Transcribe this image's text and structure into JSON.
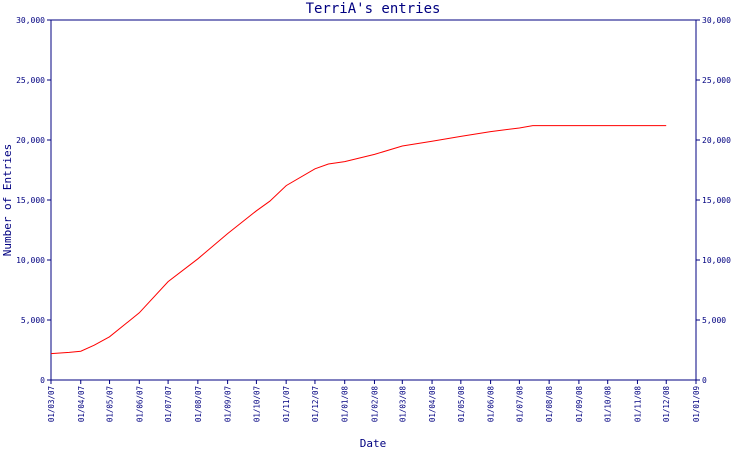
{
  "chart_data": {
    "type": "line",
    "title": "TerriA's entries",
    "xlabel": "Date",
    "ylabel": "Number of Entries",
    "ylim": [
      0,
      30000
    ],
    "y_ticks": [
      {
        "value": 0,
        "label": "0"
      },
      {
        "value": 5000,
        "label": "5,000"
      },
      {
        "value": 10000,
        "label": "10,000"
      },
      {
        "value": 15000,
        "label": "15,000"
      },
      {
        "value": 20000,
        "label": "20,000"
      },
      {
        "value": 25000,
        "label": "25,000"
      },
      {
        "value": 30000,
        "label": "30,000"
      }
    ],
    "x_ticks": [
      "01/03/07",
      "01/04/07",
      "01/05/07",
      "01/06/07",
      "01/07/07",
      "01/08/07",
      "01/09/07",
      "01/10/07",
      "01/11/07",
      "01/12/07",
      "01/01/08",
      "01/02/08",
      "01/03/08",
      "01/04/08",
      "01/05/08",
      "01/06/08",
      "01/07/08",
      "01/08/08",
      "01/09/08",
      "01/10/08",
      "01/11/08",
      "01/12/08",
      "01/01/09"
    ],
    "series": [
      {
        "color": "#ff0000",
        "points": [
          {
            "x": "2007-03-01",
            "y": 2200
          },
          {
            "x": "2007-03-20",
            "y": 2300
          },
          {
            "x": "2007-04-01",
            "y": 2400
          },
          {
            "x": "2007-04-15",
            "y": 2900
          },
          {
            "x": "2007-05-01",
            "y": 3600
          },
          {
            "x": "2007-06-01",
            "y": 5600
          },
          {
            "x": "2007-07-01",
            "y": 8200
          },
          {
            "x": "2007-08-01",
            "y": 10100
          },
          {
            "x": "2007-09-01",
            "y": 12200
          },
          {
            "x": "2007-10-01",
            "y": 14100
          },
          {
            "x": "2007-10-15",
            "y": 14900
          },
          {
            "x": "2007-11-01",
            "y": 16200
          },
          {
            "x": "2007-12-01",
            "y": 17600
          },
          {
            "x": "2007-12-15",
            "y": 18000
          },
          {
            "x": "2008-01-01",
            "y": 18200
          },
          {
            "x": "2008-02-01",
            "y": 18800
          },
          {
            "x": "2008-03-01",
            "y": 19500
          },
          {
            "x": "2008-04-01",
            "y": 19900
          },
          {
            "x": "2008-05-01",
            "y": 20300
          },
          {
            "x": "2008-06-01",
            "y": 20700
          },
          {
            "x": "2008-07-01",
            "y": 21000
          },
          {
            "x": "2008-07-15",
            "y": 21200
          },
          {
            "x": "2008-08-01",
            "y": 21200
          },
          {
            "x": "2008-12-01",
            "y": 21200
          }
        ]
      }
    ]
  }
}
